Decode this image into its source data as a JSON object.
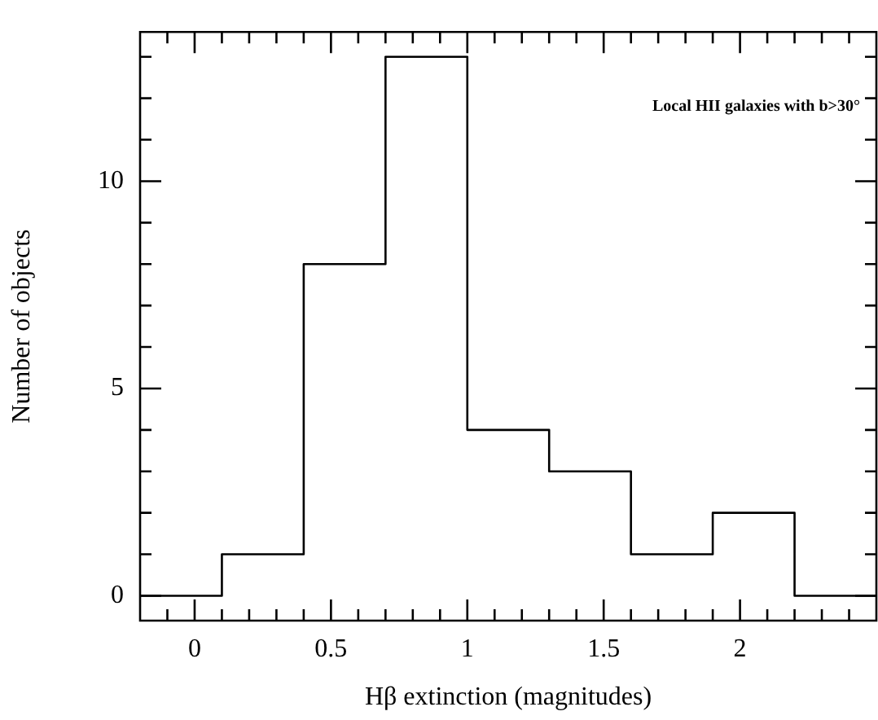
{
  "chart_data": {
    "type": "histogram",
    "xlabel": "Hβ extinction (magnitudes)",
    "ylabel": "Number of objects",
    "annotations": [
      "Local HII galaxies with b>30°"
    ],
    "bins": [
      -0.2,
      0.1,
      0.4,
      0.7,
      1.0,
      1.3,
      1.6,
      1.9,
      2.2,
      2.5
    ],
    "values": [
      0,
      1,
      8,
      13,
      4,
      3,
      1,
      2,
      0
    ],
    "color": "#000000",
    "xlim": [
      -0.2,
      2.5
    ],
    "ylim": [
      -0.6,
      13.6
    ],
    "xticks": [
      {
        "value": -0.1,
        "label": null
      },
      0,
      {
        "value": 0.1,
        "label": null
      },
      {
        "value": 0.2,
        "label": null
      },
      {
        "value": 0.3,
        "label": null
      },
      {
        "value": 0.4,
        "label": null
      },
      0.5,
      {
        "value": 0.6,
        "label": null
      },
      {
        "value": 0.7,
        "label": null
      },
      {
        "value": 0.8,
        "label": null
      },
      {
        "value": 0.9,
        "label": null
      },
      1,
      {
        "value": 1.1,
        "label": null
      },
      {
        "value": 1.2,
        "label": null
      },
      {
        "value": 1.3,
        "label": null
      },
      {
        "value": 1.4,
        "label": null
      },
      1.5,
      {
        "value": 1.6,
        "label": null
      },
      {
        "value": 1.7,
        "label": null
      },
      {
        "value": 1.8,
        "label": null
      },
      {
        "value": 1.9,
        "label": null
      },
      2,
      {
        "value": 2.1,
        "label": null
      },
      {
        "value": 2.2,
        "label": null
      },
      {
        "value": 2.3,
        "label": null
      },
      {
        "value": 2.4,
        "label": null
      }
    ],
    "yticks": [
      0,
      {
        "value": 1,
        "label": null
      },
      {
        "value": 2,
        "label": null
      },
      {
        "value": 3,
        "label": null
      },
      {
        "value": 4,
        "label": null
      },
      5,
      {
        "value": 6,
        "label": null
      },
      {
        "value": 7,
        "label": null
      },
      {
        "value": 8,
        "label": null
      },
      {
        "value": 9,
        "label": null
      },
      10,
      {
        "value": 11,
        "label": null
      },
      {
        "value": 12,
        "label": null
      },
      {
        "value": 13,
        "label": null
      }
    ]
  }
}
